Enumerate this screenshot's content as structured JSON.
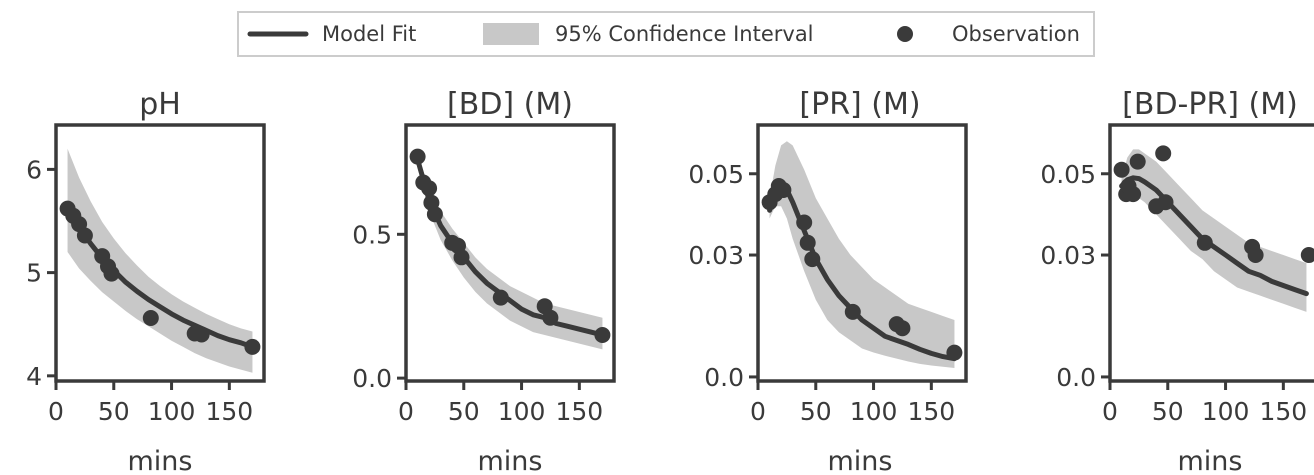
{
  "legend": {
    "placement": "top-center",
    "items": [
      {
        "label": "Model Fit",
        "kind": "line"
      },
      {
        "label": "95% Confidence Interval",
        "kind": "band"
      },
      {
        "label": "Observation",
        "kind": "marker"
      }
    ]
  },
  "colors": {
    "line": "#3a3a3a",
    "band": "#c8c8c8",
    "marker": "#3a3a3a",
    "axes": "#3a3a3a"
  },
  "chart_data": [
    {
      "type": "line",
      "title": "pH",
      "xlabel": "mins",
      "ylabel": "",
      "xlim": [
        0,
        180
      ],
      "ylim": [
        3.95,
        6.43
      ],
      "xticks": [
        0,
        50,
        100,
        150
      ],
      "xtick_labels": [
        "0",
        "50",
        "100",
        "150"
      ],
      "yticks": [
        4,
        5,
        6
      ],
      "ytick_labels": [
        "4",
        "5",
        "6"
      ],
      "grid": false,
      "fit": {
        "name": "Model Fit",
        "x": [
          10,
          20,
          30,
          40,
          50,
          60,
          70,
          80,
          90,
          100,
          110,
          120,
          130,
          140,
          150,
          160,
          170
        ],
        "y": [
          5.62,
          5.44,
          5.28,
          5.14,
          5.02,
          4.91,
          4.82,
          4.74,
          4.67,
          4.6,
          4.54,
          4.49,
          4.44,
          4.39,
          4.35,
          4.32,
          4.28
        ]
      },
      "ci": {
        "name": "95% Confidence Interval",
        "x": [
          10,
          20,
          30,
          40,
          50,
          60,
          70,
          80,
          90,
          100,
          110,
          120,
          130,
          140,
          150,
          160,
          170
        ],
        "lower": [
          5.2,
          5.04,
          4.92,
          4.81,
          4.72,
          4.63,
          4.55,
          4.48,
          4.41,
          4.34,
          4.28,
          4.22,
          4.17,
          4.13,
          4.09,
          4.06,
          4.03
        ],
        "upper": [
          6.2,
          5.92,
          5.69,
          5.49,
          5.33,
          5.19,
          5.07,
          4.96,
          4.87,
          4.79,
          4.72,
          4.66,
          4.6,
          4.55,
          4.5,
          4.46,
          4.43
        ]
      },
      "observations": {
        "name": "Observation",
        "x": [
          10,
          15,
          20,
          25,
          40,
          45,
          48,
          82,
          120,
          126,
          170
        ],
        "y": [
          5.62,
          5.55,
          5.47,
          5.36,
          5.16,
          5.06,
          4.99,
          4.56,
          4.41,
          4.4,
          4.28
        ]
      }
    },
    {
      "type": "line",
      "title": "[BD] (M)",
      "xlabel": "mins",
      "ylabel": "",
      "xlim": [
        0,
        180
      ],
      "ylim": [
        -0.01,
        0.88
      ],
      "xticks": [
        0,
        50,
        100,
        150
      ],
      "xtick_labels": [
        "0",
        "50",
        "100",
        "150"
      ],
      "yticks": [
        0.0,
        0.5
      ],
      "ytick_labels": [
        "0.0",
        "0.5"
      ],
      "grid": false,
      "fit": {
        "name": "Model Fit",
        "x": [
          10,
          20,
          30,
          40,
          50,
          60,
          70,
          80,
          90,
          100,
          110,
          120,
          130,
          140,
          150,
          160,
          170
        ],
        "y": [
          0.76,
          0.62,
          0.53,
          0.47,
          0.42,
          0.37,
          0.33,
          0.3,
          0.27,
          0.24,
          0.22,
          0.21,
          0.19,
          0.18,
          0.17,
          0.16,
          0.15
        ]
      },
      "ci": {
        "name": "95% Confidence Interval",
        "x": [
          10,
          20,
          30,
          40,
          50,
          60,
          70,
          80,
          90,
          100,
          110,
          120,
          130,
          140,
          150,
          160,
          170
        ],
        "lower": [
          0.73,
          0.58,
          0.48,
          0.41,
          0.35,
          0.3,
          0.26,
          0.23,
          0.2,
          0.18,
          0.16,
          0.15,
          0.14,
          0.13,
          0.12,
          0.11,
          0.1
        ],
        "upper": [
          0.78,
          0.66,
          0.58,
          0.52,
          0.47,
          0.42,
          0.38,
          0.35,
          0.32,
          0.3,
          0.28,
          0.26,
          0.25,
          0.24,
          0.23,
          0.22,
          0.21
        ]
      },
      "observations": {
        "name": "Observation",
        "x": [
          10,
          15,
          20,
          22,
          25,
          40,
          45,
          48,
          82,
          120,
          125,
          170
        ],
        "y": [
          0.77,
          0.68,
          0.66,
          0.61,
          0.57,
          0.47,
          0.46,
          0.42,
          0.28,
          0.25,
          0.21,
          0.15
        ]
      }
    },
    {
      "type": "line",
      "title": "[PR] (M)",
      "xlabel": "mins",
      "ylabel": "",
      "xlim": [
        0,
        180
      ],
      "ylim": [
        -0.001,
        0.062
      ],
      "xticks": [
        0,
        50,
        100,
        150
      ],
      "xtick_labels": [
        "0",
        "50",
        "100",
        "150"
      ],
      "yticks": [
        0.0,
        0.03,
        0.05
      ],
      "ytick_labels": [
        "0.0",
        "0.03",
        "0.05"
      ],
      "grid": false,
      "fit": {
        "name": "Model Fit",
        "x": [
          10,
          15,
          20,
          25,
          30,
          40,
          50,
          60,
          70,
          80,
          90,
          100,
          110,
          120,
          130,
          140,
          150,
          160,
          170
        ],
        "y": [
          0.041,
          0.045,
          0.047,
          0.046,
          0.043,
          0.036,
          0.029,
          0.024,
          0.02,
          0.017,
          0.014,
          0.012,
          0.01,
          0.009,
          0.008,
          0.0068,
          0.0058,
          0.005,
          0.0045
        ]
      },
      "ci": {
        "name": "95% Confidence Interval",
        "x": [
          10,
          15,
          20,
          25,
          30,
          40,
          50,
          60,
          70,
          80,
          90,
          100,
          110,
          120,
          130,
          140,
          150,
          160,
          170
        ],
        "lower": [
          0.039,
          0.042,
          0.042,
          0.039,
          0.034,
          0.026,
          0.019,
          0.014,
          0.011,
          0.009,
          0.007,
          0.006,
          0.0052,
          0.0045,
          0.0038,
          0.0032,
          0.0028,
          0.0025,
          0.0022
        ],
        "upper": [
          0.044,
          0.052,
          0.057,
          0.058,
          0.057,
          0.051,
          0.044,
          0.039,
          0.034,
          0.03,
          0.027,
          0.024,
          0.022,
          0.02,
          0.018,
          0.017,
          0.016,
          0.015,
          0.014
        ]
      },
      "observations": {
        "name": "Observation",
        "x": [
          10,
          15,
          18,
          22,
          40,
          43,
          47,
          82,
          120,
          125,
          170
        ],
        "y": [
          0.043,
          0.045,
          0.047,
          0.046,
          0.038,
          0.033,
          0.029,
          0.016,
          0.013,
          0.012,
          0.006
        ]
      }
    },
    {
      "type": "line",
      "title": "[BD-PR] (M)",
      "xlabel": "mins",
      "ylabel": "",
      "xlim": [
        0,
        180
      ],
      "ylim": [
        -0.001,
        0.062
      ],
      "xticks": [
        0,
        50,
        100,
        150
      ],
      "xtick_labels": [
        "0",
        "50",
        "100",
        "150"
      ],
      "yticks": [
        0.0,
        0.03,
        0.05
      ],
      "ytick_labels": [
        "0.0",
        "0.03",
        "0.05"
      ],
      "grid": false,
      "fit": {
        "name": "Model Fit",
        "x": [
          10,
          15,
          20,
          25,
          30,
          40,
          50,
          60,
          70,
          80,
          90,
          100,
          110,
          120,
          130,
          140,
          150,
          160,
          170
        ],
        "y": [
          0.047,
          0.0485,
          0.049,
          0.0488,
          0.048,
          0.046,
          0.043,
          0.04,
          0.037,
          0.034,
          0.032,
          0.03,
          0.028,
          0.026,
          0.025,
          0.0235,
          0.0225,
          0.0215,
          0.0205
        ]
      },
      "ci": {
        "name": "95% Confidence Interval",
        "x": [
          10,
          15,
          20,
          25,
          30,
          40,
          50,
          60,
          70,
          80,
          90,
          100,
          110,
          120,
          130,
          140,
          150,
          160,
          170
        ],
        "lower": [
          0.045,
          0.046,
          0.045,
          0.044,
          0.043,
          0.04,
          0.037,
          0.034,
          0.031,
          0.029,
          0.026,
          0.024,
          0.022,
          0.021,
          0.02,
          0.019,
          0.018,
          0.017,
          0.016
        ],
        "upper": [
          0.049,
          0.054,
          0.056,
          0.056,
          0.055,
          0.053,
          0.05,
          0.047,
          0.044,
          0.041,
          0.039,
          0.037,
          0.035,
          0.033,
          0.032,
          0.031,
          0.03,
          0.029,
          0.028
        ]
      },
      "observations": {
        "name": "Observation",
        "x": [
          10,
          14,
          16,
          20,
          24,
          40,
          46,
          48,
          82,
          123,
          126,
          172
        ],
        "y": [
          0.051,
          0.045,
          0.047,
          0.045,
          0.053,
          0.042,
          0.055,
          0.043,
          0.033,
          0.032,
          0.03,
          0.03
        ]
      }
    }
  ]
}
